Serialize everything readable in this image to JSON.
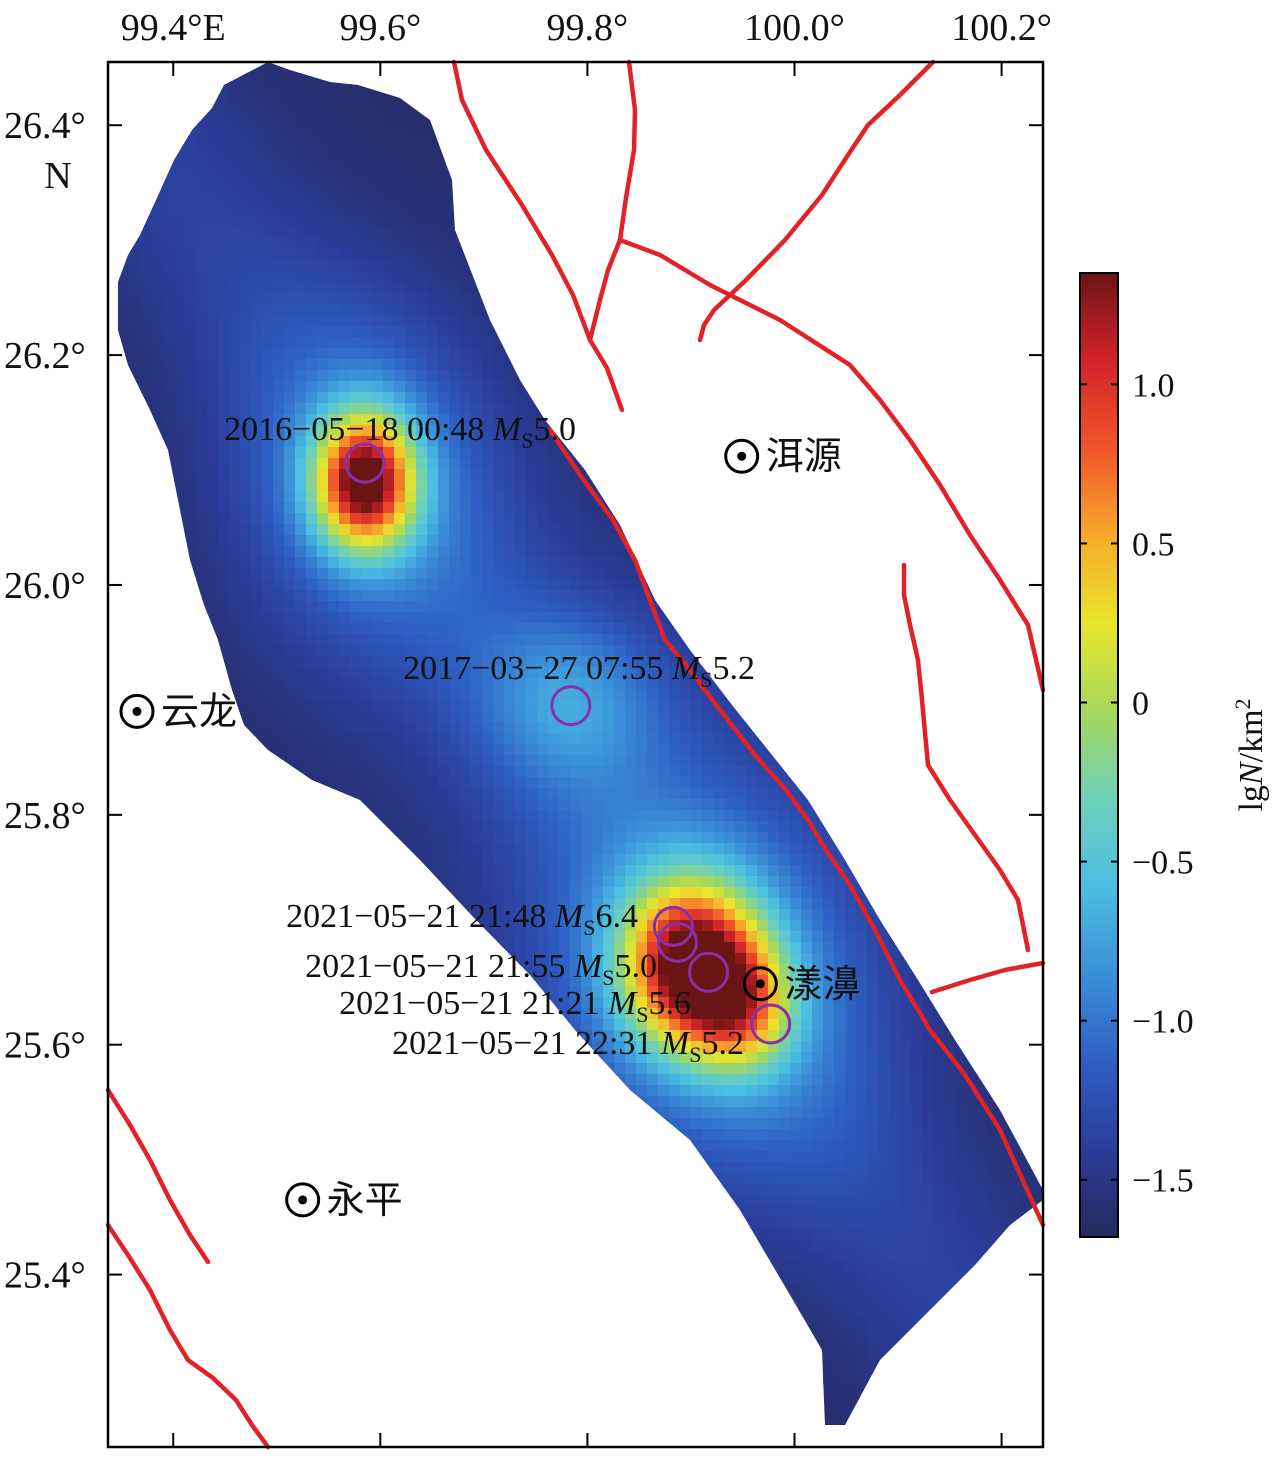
{
  "map": {
    "lon_ticks": [
      {
        "value": 99.4,
        "label": "99.4°E"
      },
      {
        "value": 99.6,
        "label": "99.6°"
      },
      {
        "value": 99.8,
        "label": "99.8°"
      },
      {
        "value": 100.0,
        "label": "100.0°"
      },
      {
        "value": 100.2,
        "label": "100.2°"
      }
    ],
    "lat_ticks": [
      {
        "value": 26.4,
        "label": "26.4°",
        "sublabel": "N"
      },
      {
        "value": 26.2,
        "label": "26.2°"
      },
      {
        "value": 26.0,
        "label": "26.0°"
      },
      {
        "value": 25.8,
        "label": "25.8°"
      },
      {
        "value": 25.6,
        "label": "25.6°"
      },
      {
        "value": 25.4,
        "label": "25.4°"
      }
    ],
    "extent": {
      "lon": [
        99.337,
        100.24
      ],
      "lat": [
        25.25,
        26.455
      ]
    },
    "events": [
      {
        "date": "2016−05−18 00:48",
        "mag": "5.0",
        "lon": 99.585,
        "lat": 26.106
      },
      {
        "date": "2017−03−27 07:55",
        "mag": "5.2",
        "lon": 99.784,
        "lat": 25.895
      },
      {
        "date": "2021−05−21 21:48",
        "mag": "6.4",
        "lon": 99.883,
        "lat": 25.703
      },
      {
        "date": "2021−05−21 21:55",
        "mag": "5.0",
        "lon": 99.887,
        "lat": 25.689
      },
      {
        "date": "2021−05−21 21:21",
        "mag": "5.6",
        "lon": 99.917,
        "lat": 25.663
      },
      {
        "date": "2021−05−21 22:31",
        "mag": "5.2",
        "lon": 99.977,
        "lat": 25.618
      }
    ],
    "magnitude_prefix": "M",
    "magnitude_subscript": "S",
    "towns": [
      {
        "name": "洱源",
        "lon": 99.949,
        "lat": 26.112
      },
      {
        "name": "云龙",
        "lon": 99.365,
        "lat": 25.89
      },
      {
        "name": "漾濞",
        "lon": 99.967,
        "lat": 25.653
      },
      {
        "name": "永平",
        "lon": 99.525,
        "lat": 25.465
      }
    ],
    "colors": {
      "fault": "#e12228",
      "event_circle": "#8b2fa6",
      "frame": "#000000"
    }
  },
  "colorbar": {
    "label_prefix": "lg",
    "label_var": "N",
    "label_unit": "/km",
    "label_exp": "2",
    "range": [
      -1.68,
      1.35
    ],
    "ticks": [
      {
        "value": 1.0,
        "label": "1.0"
      },
      {
        "value": 0.5,
        "label": "0.5"
      },
      {
        "value": 0,
        "label": "0"
      },
      {
        "value": -0.5,
        "label": "−0.5"
      },
      {
        "value": -1.0,
        "label": "−1.0"
      },
      {
        "value": -1.5,
        "label": "−1.5"
      }
    ],
    "colormap": "jet",
    "stops": [
      "#25295e",
      "#2b3d9a",
      "#2e5fc4",
      "#3b8fd8",
      "#4bbfe3",
      "#6fd0b8",
      "#a6d85a",
      "#e8e62d",
      "#f7a92b",
      "#f0552a",
      "#d3232a",
      "#6b1414"
    ]
  }
}
